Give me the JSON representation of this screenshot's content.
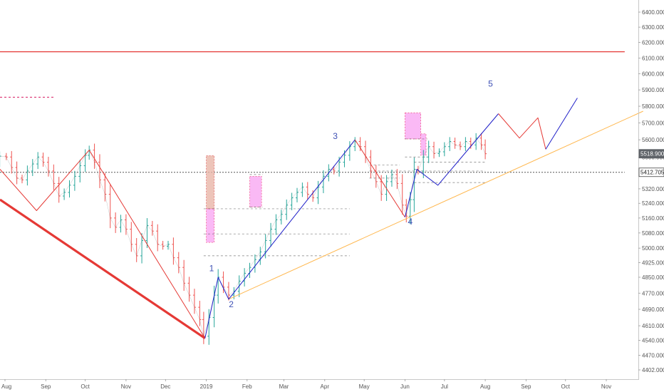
{
  "chart_data": {
    "type": "line",
    "title": "",
    "xlabel": "",
    "ylabel": "",
    "grid": false,
    "colors": {
      "candle": "#555555",
      "candle_up": "#26a69a",
      "candle_down": "#ef5350",
      "red_line": "#e53935",
      "blue_wave": "#1f1fc8",
      "orange_trend": "#ffb74d",
      "pink_box": "#f9a8f2",
      "brown_box": "#e8b5a8",
      "price_tag_bg": "#5f6368",
      "axis_text": "#555555"
    },
    "x_axis": {
      "ticks": [
        {
          "label": "Aug",
          "x": "2018-08-01"
        },
        {
          "label": "Sep",
          "x": "2018-09-01"
        },
        {
          "label": "Oct",
          "x": "2018-10-01"
        },
        {
          "label": "Nov",
          "x": "2018-11-01"
        },
        {
          "label": "Dec",
          "x": "2018-12-01"
        },
        {
          "label": "2019",
          "x": "2019-01-01"
        },
        {
          "label": "Feb",
          "x": "2019-02-01"
        },
        {
          "label": "Mar",
          "x": "2019-03-01"
        },
        {
          "label": "Apr",
          "x": "2019-04-01"
        },
        {
          "label": "May",
          "x": "2019-05-01"
        },
        {
          "label": "Jun",
          "x": "2019-06-01"
        },
        {
          "label": "Jul",
          "x": "2019-07-01"
        },
        {
          "label": "Aug",
          "x": "2019-08-01"
        },
        {
          "label": "Sep",
          "x": "2019-09-01"
        },
        {
          "label": "Oct",
          "x": "2019-10-01"
        },
        {
          "label": "Nov",
          "x": "2019-11-01"
        }
      ]
    },
    "y_axis": {
      "scale": "log",
      "range": [
        4370,
        6560
      ],
      "ticks": [
        {
          "label": "6400.000",
          "v": 6400
        },
        {
          "label": "6300.000",
          "v": 6300
        },
        {
          "label": "6200.000",
          "v": 6200
        },
        {
          "label": "6100.000",
          "v": 6100
        },
        {
          "label": "6000.000",
          "v": 6000
        },
        {
          "label": "5900.000",
          "v": 5900
        },
        {
          "label": "5800.000",
          "v": 5800
        },
        {
          "label": "5700.000",
          "v": 5700
        },
        {
          "label": "5600.000",
          "v": 5600
        },
        {
          "label": "5500.000",
          "v": 5500
        },
        {
          "label": "5320.000",
          "v": 5320
        },
        {
          "label": "5240.000",
          "v": 5240
        },
        {
          "label": "5160.000",
          "v": 5160
        },
        {
          "label": "5080.000",
          "v": 5080
        },
        {
          "label": "5000.000",
          "v": 5000
        },
        {
          "label": "4925.000",
          "v": 4925
        },
        {
          "label": "4850.000",
          "v": 4850
        },
        {
          "label": "4770.000",
          "v": 4770
        },
        {
          "label": "4690.000",
          "v": 4690
        },
        {
          "label": "4610.000",
          "v": 4610
        },
        {
          "label": "4540.000",
          "v": 4540
        },
        {
          "label": "4470.000",
          "v": 4470
        },
        {
          "label": "4402.000",
          "v": 4402
        }
      ]
    },
    "price_labels": [
      {
        "label": "5518.900",
        "v": 5518.9,
        "style": "solid"
      },
      {
        "label": "5412.705",
        "v": 5412.705,
        "style": "outline"
      }
    ],
    "horizontal_lines": [
      {
        "v": 6140,
        "x_start": "2018-07-15",
        "x_end": "2019-11-15",
        "color": "#e53935",
        "width": 1.2,
        "dash": "none"
      },
      {
        "v": 5412.705,
        "x_start": "2018-07-15",
        "x_end": "2019-11-15",
        "color": "#555555",
        "width": 1,
        "dash": "2,2"
      },
      {
        "v": 5855,
        "x_start": "2018-07-15",
        "x_end": "2018-09-08",
        "color": "#d81b60",
        "width": 1,
        "dash": "3,3"
      }
    ],
    "price_series": {
      "name": "",
      "points": [
        {
          "x": "2018-07-18",
          "y": 5510
        },
        {
          "x": "2018-07-23",
          "y": 5470
        },
        {
          "x": "2018-07-28",
          "y": 5505
        },
        {
          "x": "2018-08-02",
          "y": 5500
        },
        {
          "x": "2018-08-06",
          "y": 5440
        },
        {
          "x": "2018-08-10",
          "y": 5380
        },
        {
          "x": "2018-08-14",
          "y": 5370
        },
        {
          "x": "2018-08-18",
          "y": 5420
        },
        {
          "x": "2018-08-22",
          "y": 5460
        },
        {
          "x": "2018-08-26",
          "y": 5500
        },
        {
          "x": "2018-08-30",
          "y": 5470
        },
        {
          "x": "2018-09-03",
          "y": 5420
        },
        {
          "x": "2018-09-07",
          "y": 5350
        },
        {
          "x": "2018-09-11",
          "y": 5280
        },
        {
          "x": "2018-09-15",
          "y": 5300
        },
        {
          "x": "2018-09-19",
          "y": 5340
        },
        {
          "x": "2018-09-23",
          "y": 5390
        },
        {
          "x": "2018-09-27",
          "y": 5450
        },
        {
          "x": "2018-10-01",
          "y": 5510
        },
        {
          "x": "2018-10-04",
          "y": 5540
        },
        {
          "x": "2018-10-08",
          "y": 5470
        },
        {
          "x": "2018-10-12",
          "y": 5370
        },
        {
          "x": "2018-10-16",
          "y": 5290
        },
        {
          "x": "2018-10-20",
          "y": 5160
        },
        {
          "x": "2018-10-24",
          "y": 5110
        },
        {
          "x": "2018-10-28",
          "y": 5150
        },
        {
          "x": "2018-11-01",
          "y": 5100
        },
        {
          "x": "2018-11-05",
          "y": 5020
        },
        {
          "x": "2018-11-09",
          "y": 4960
        },
        {
          "x": "2018-11-13",
          "y": 5040
        },
        {
          "x": "2018-11-17",
          "y": 5120
        },
        {
          "x": "2018-11-21",
          "y": 5090
        },
        {
          "x": "2018-11-25",
          "y": 5020
        },
        {
          "x": "2018-11-29",
          "y": 5010
        },
        {
          "x": "2018-12-03",
          "y": 5020
        },
        {
          "x": "2018-12-07",
          "y": 4950
        },
        {
          "x": "2018-12-11",
          "y": 4900
        },
        {
          "x": "2018-12-15",
          "y": 4820
        },
        {
          "x": "2018-12-19",
          "y": 4760
        },
        {
          "x": "2018-12-23",
          "y": 4700
        },
        {
          "x": "2018-12-27",
          "y": 4640
        },
        {
          "x": "2018-12-30",
          "y": 4560
        },
        {
          "x": "2019-01-03",
          "y": 4650
        },
        {
          "x": "2019-01-07",
          "y": 4760
        },
        {
          "x": "2019-01-10",
          "y": 4850
        },
        {
          "x": "2019-01-14",
          "y": 4800
        },
        {
          "x": "2019-01-18",
          "y": 4760
        },
        {
          "x": "2019-01-22",
          "y": 4780
        },
        {
          "x": "2019-01-26",
          "y": 4830
        },
        {
          "x": "2019-01-30",
          "y": 4870
        },
        {
          "x": "2019-02-03",
          "y": 4900
        },
        {
          "x": "2019-02-07",
          "y": 4940
        },
        {
          "x": "2019-02-11",
          "y": 4980
        },
        {
          "x": "2019-02-15",
          "y": 5040
        },
        {
          "x": "2019-02-19",
          "y": 5100
        },
        {
          "x": "2019-02-23",
          "y": 5150
        },
        {
          "x": "2019-02-27",
          "y": 5180
        },
        {
          "x": "2019-03-03",
          "y": 5230
        },
        {
          "x": "2019-03-07",
          "y": 5270
        },
        {
          "x": "2019-03-11",
          "y": 5300
        },
        {
          "x": "2019-03-15",
          "y": 5330
        },
        {
          "x": "2019-03-19",
          "y": 5290
        },
        {
          "x": "2019-03-23",
          "y": 5270
        },
        {
          "x": "2019-03-27",
          "y": 5330
        },
        {
          "x": "2019-03-31",
          "y": 5390
        },
        {
          "x": "2019-04-04",
          "y": 5430
        },
        {
          "x": "2019-04-08",
          "y": 5420
        },
        {
          "x": "2019-04-12",
          "y": 5470
        },
        {
          "x": "2019-04-16",
          "y": 5510
        },
        {
          "x": "2019-04-20",
          "y": 5560
        },
        {
          "x": "2019-04-24",
          "y": 5590
        },
        {
          "x": "2019-04-28",
          "y": 5560
        },
        {
          "x": "2019-05-02",
          "y": 5500
        },
        {
          "x": "2019-05-06",
          "y": 5420
        },
        {
          "x": "2019-05-10",
          "y": 5360
        },
        {
          "x": "2019-05-14",
          "y": 5290
        },
        {
          "x": "2019-05-18",
          "y": 5360
        },
        {
          "x": "2019-05-22",
          "y": 5400
        },
        {
          "x": "2019-05-26",
          "y": 5350
        },
        {
          "x": "2019-05-30",
          "y": 5230
        },
        {
          "x": "2019-06-02",
          "y": 5170
        },
        {
          "x": "2019-06-05",
          "y": 5260
        },
        {
          "x": "2019-06-08",
          "y": 5430
        },
        {
          "x": "2019-06-11",
          "y": 5420
        },
        {
          "x": "2019-06-15",
          "y": 5500
        },
        {
          "x": "2019-06-19",
          "y": 5560
        },
        {
          "x": "2019-06-23",
          "y": 5520
        },
        {
          "x": "2019-06-27",
          "y": 5530
        },
        {
          "x": "2019-07-01",
          "y": 5560
        },
        {
          "x": "2019-07-05",
          "y": 5590
        },
        {
          "x": "2019-07-09",
          "y": 5570
        },
        {
          "x": "2019-07-13",
          "y": 5560
        },
        {
          "x": "2019-07-17",
          "y": 5590
        },
        {
          "x": "2019-07-21",
          "y": 5570
        },
        {
          "x": "2019-07-25",
          "y": 5610
        },
        {
          "x": "2019-07-29",
          "y": 5570
        },
        {
          "x": "2019-08-01",
          "y": 5519
        }
      ]
    },
    "zigzags": [
      {
        "name": "",
        "color": "#e53935",
        "width": 1,
        "points": [
          {
            "x": "2018-07-15",
            "y": 5430
          },
          {
            "x": "2018-08-25",
            "y": 5200
          },
          {
            "x": "2018-10-04",
            "y": 5540
          },
          {
            "x": "2018-12-31",
            "y": 4550
          }
        ]
      },
      {
        "name": "",
        "color": "#e53935",
        "width": 3.2,
        "points": [
          {
            "x": "2018-07-15",
            "y": 5260
          },
          {
            "x": "2018-12-31",
            "y": 4550
          }
        ]
      },
      {
        "name": "",
        "color": "#1f1fc8",
        "width": 1,
        "points": [
          {
            "x": "2018-12-31",
            "y": 4550
          },
          {
            "x": "2019-01-10",
            "y": 4850
          },
          {
            "x": "2019-01-18",
            "y": 4740
          },
          {
            "x": "2019-04-24",
            "y": 5600
          }
        ]
      },
      {
        "name": "",
        "color": "#e53935",
        "width": 1,
        "points": [
          {
            "x": "2019-04-24",
            "y": 5600
          },
          {
            "x": "2019-06-01",
            "y": 5165
          }
        ]
      },
      {
        "name": "",
        "color": "#1f1fc8",
        "width": 1,
        "points": [
          {
            "x": "2019-06-01",
            "y": 5165
          },
          {
            "x": "2019-06-10",
            "y": 5430
          },
          {
            "x": "2019-06-26",
            "y": 5340
          },
          {
            "x": "2019-08-11",
            "y": 5755
          }
        ]
      },
      {
        "name": "",
        "color": "#e53935",
        "width": 1,
        "points": [
          {
            "x": "2019-08-11",
            "y": 5755
          },
          {
            "x": "2019-08-27",
            "y": 5610
          },
          {
            "x": "2019-09-10",
            "y": 5730
          },
          {
            "x": "2019-09-16",
            "y": 5545
          }
        ]
      },
      {
        "name": "",
        "color": "#1f1fc8",
        "width": 1,
        "points": [
          {
            "x": "2019-09-16",
            "y": 5545
          },
          {
            "x": "2019-10-10",
            "y": 5850
          }
        ]
      }
    ],
    "trend_lines": [
      {
        "color": "#ffb74d",
        "width": 1,
        "points": [
          {
            "x": "2019-01-18",
            "y": 4740
          },
          {
            "x": "2019-11-29",
            "y": 5770
          }
        ]
      }
    ],
    "boxes": [
      {
        "color": "#e8b5a8",
        "x_start": "2019-01-01",
        "x_end": "2019-01-07",
        "y_low": 5210,
        "y_high": 5508,
        "border": "#e57373"
      },
      {
        "color": "#f9a8f2",
        "x_start": "2019-01-01",
        "x_end": "2019-01-07",
        "y_low": 5030,
        "y_high": 5210,
        "border": "#f06292"
      },
      {
        "color": "#f9a8f2",
        "x_start": "2019-02-03",
        "x_end": "2019-02-12",
        "y_low": 5220,
        "y_high": 5390,
        "border": "#f06292"
      },
      {
        "color": "#f9a8f2",
        "x_start": "2019-06-01",
        "x_end": "2019-06-13",
        "y_low": 5605,
        "y_high": 5760,
        "border": "#f06292"
      },
      {
        "color": "#f9a8f2",
        "x_start": "2019-06-13",
        "x_end": "2019-06-17",
        "y_low": 5510,
        "y_high": 5635,
        "border": "#f06292"
      }
    ],
    "dashed_levels": [
      {
        "v": 5210,
        "x_start": "2018-12-30",
        "x_end": "2019-04-20",
        "color": "#444444"
      },
      {
        "v": 5075,
        "x_start": "2018-12-30",
        "x_end": "2019-04-20",
        "color": "#444444"
      },
      {
        "v": 4960,
        "x_start": "2018-12-30",
        "x_end": "2019-04-20",
        "color": "#444444"
      },
      {
        "v": 5400,
        "x_start": "2019-02-03",
        "x_end": "2019-02-13",
        "color": "#444444"
      },
      {
        "v": 5220,
        "x_start": "2019-02-03",
        "x_end": "2019-02-13",
        "color": "#444444"
      },
      {
        "v": 5605,
        "x_start": "2019-06-01",
        "x_end": "2019-06-18",
        "color": "#444444"
      },
      {
        "v": 5500,
        "x_start": "2019-06-01",
        "x_end": "2019-06-18",
        "color": "#444444"
      },
      {
        "v": 5470,
        "x_start": "2019-06-08",
        "x_end": "2019-08-01",
        "color": "#444444"
      },
      {
        "v": 5420,
        "x_start": "2019-05-05",
        "x_end": "2019-08-01",
        "color": "#444444"
      },
      {
        "v": 5355,
        "x_start": "2019-06-08",
        "x_end": "2019-08-01",
        "color": "#444444"
      },
      {
        "v": 5455,
        "x_start": "2019-05-05",
        "x_end": "2019-05-28",
        "color": "#444444"
      },
      {
        "v": 5380,
        "x_start": "2019-05-05",
        "x_end": "2019-05-28",
        "color": "#444444"
      }
    ],
    "annotations": [
      {
        "text": "1",
        "x": "2019-01-05",
        "y": 4880,
        "color": "#3f51b5"
      },
      {
        "text": "2",
        "x": "2019-01-20",
        "y": 4700,
        "color": "#3f51b5"
      },
      {
        "text": "3",
        "x": "2019-04-09",
        "y": 5605,
        "color": "#3f51b5"
      },
      {
        "text": "4",
        "x": "2019-06-05",
        "y": 5125,
        "color": "#3f51b5"
      },
      {
        "text": "5",
        "x": "2019-08-05",
        "y": 5920,
        "color": "#3f51b5"
      }
    ]
  }
}
